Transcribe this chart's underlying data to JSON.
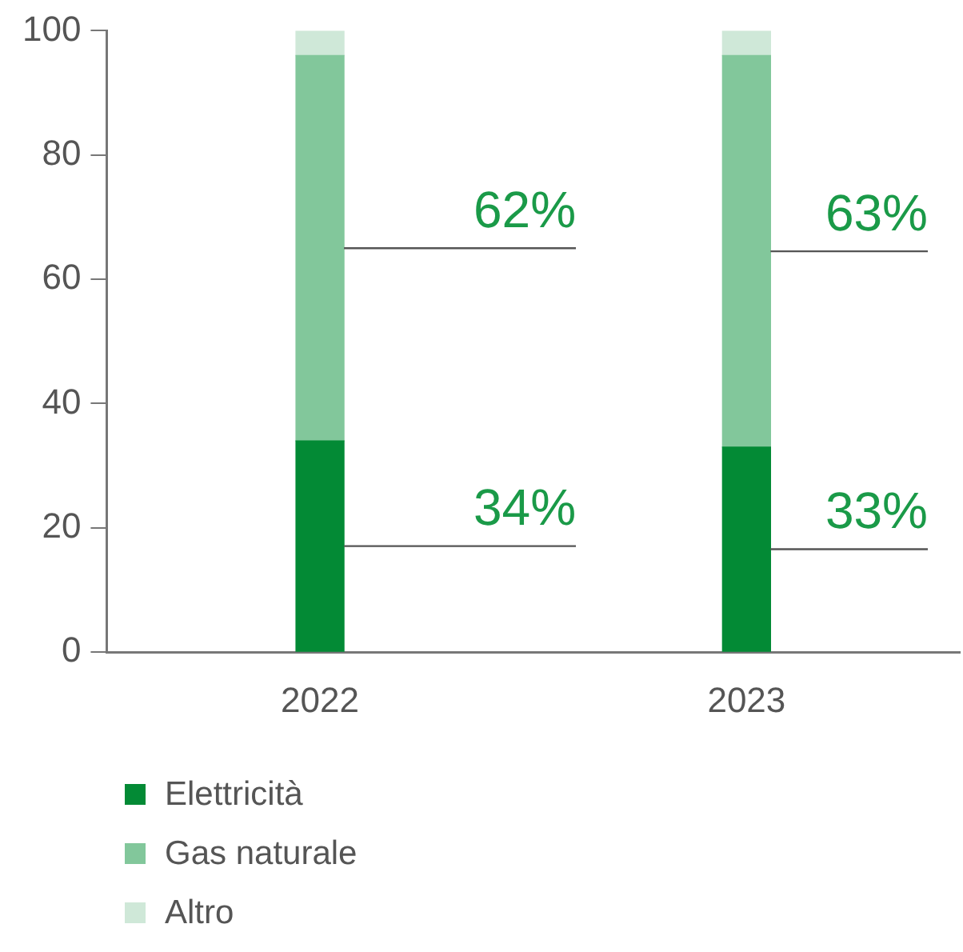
{
  "chart_data": {
    "type": "bar",
    "stacked": true,
    "categories": [
      "2022",
      "2023"
    ],
    "series": [
      {
        "name": "Elettricità",
        "color": "#038a35",
        "values": [
          34,
          33
        ],
        "value_labels": [
          "34%",
          "33%"
        ]
      },
      {
        "name": "Gas naturale",
        "color": "#82c79b",
        "values": [
          62,
          63
        ],
        "value_labels": [
          "62%",
          "63%"
        ]
      },
      {
        "name": "Altro",
        "color": "#cfe8d8",
        "values": [
          4,
          4
        ]
      }
    ],
    "ylim": [
      0,
      100
    ],
    "yticks": [
      0,
      20,
      40,
      60,
      80,
      100
    ],
    "grid": false,
    "legend": "bottom"
  }
}
